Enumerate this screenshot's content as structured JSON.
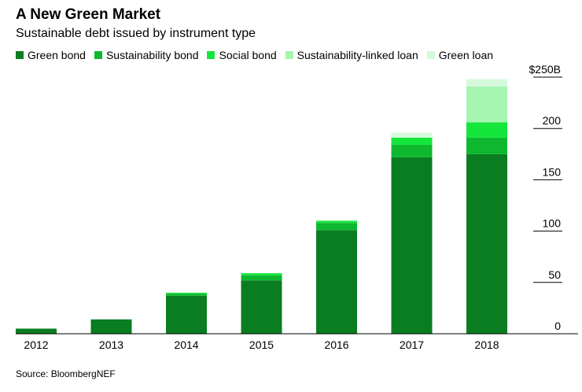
{
  "chart_data": {
    "type": "bar",
    "stacked": true,
    "title": "A New Green Market",
    "subtitle": "Sustainable debt issued by instrument type",
    "categories": [
      "2012",
      "2013",
      "2014",
      "2015",
      "2016",
      "2017",
      "2018"
    ],
    "series": [
      {
        "name": "Green bond",
        "color": "#0a7d21",
        "values": [
          5,
          14,
          37,
          52,
          101,
          172,
          175
        ]
      },
      {
        "name": "Sustainability bond",
        "color": "#0db82e",
        "values": [
          0,
          0,
          2,
          5,
          7,
          12,
          16
        ]
      },
      {
        "name": "Social bond",
        "color": "#14e63c",
        "values": [
          0,
          0,
          1,
          2,
          2,
          7,
          15
        ]
      },
      {
        "name": "Sustainability-linked loan",
        "color": "#a5f5b0",
        "values": [
          0,
          0,
          0,
          0,
          0,
          0,
          35
        ]
      },
      {
        "name": "Green loan",
        "color": "#d6f9dc",
        "values": [
          0,
          0,
          0,
          0,
          1,
          5,
          7
        ]
      }
    ],
    "ylim": [
      0,
      250
    ],
    "yticks": [
      0,
      50,
      100,
      150,
      200,
      250
    ],
    "ytick_labels": [
      "0",
      "50",
      "100",
      "150",
      "200",
      "$250B"
    ],
    "xlabel": "",
    "ylabel": "",
    "y_axis_side": "right",
    "source": "Source: BloombergNEF"
  }
}
